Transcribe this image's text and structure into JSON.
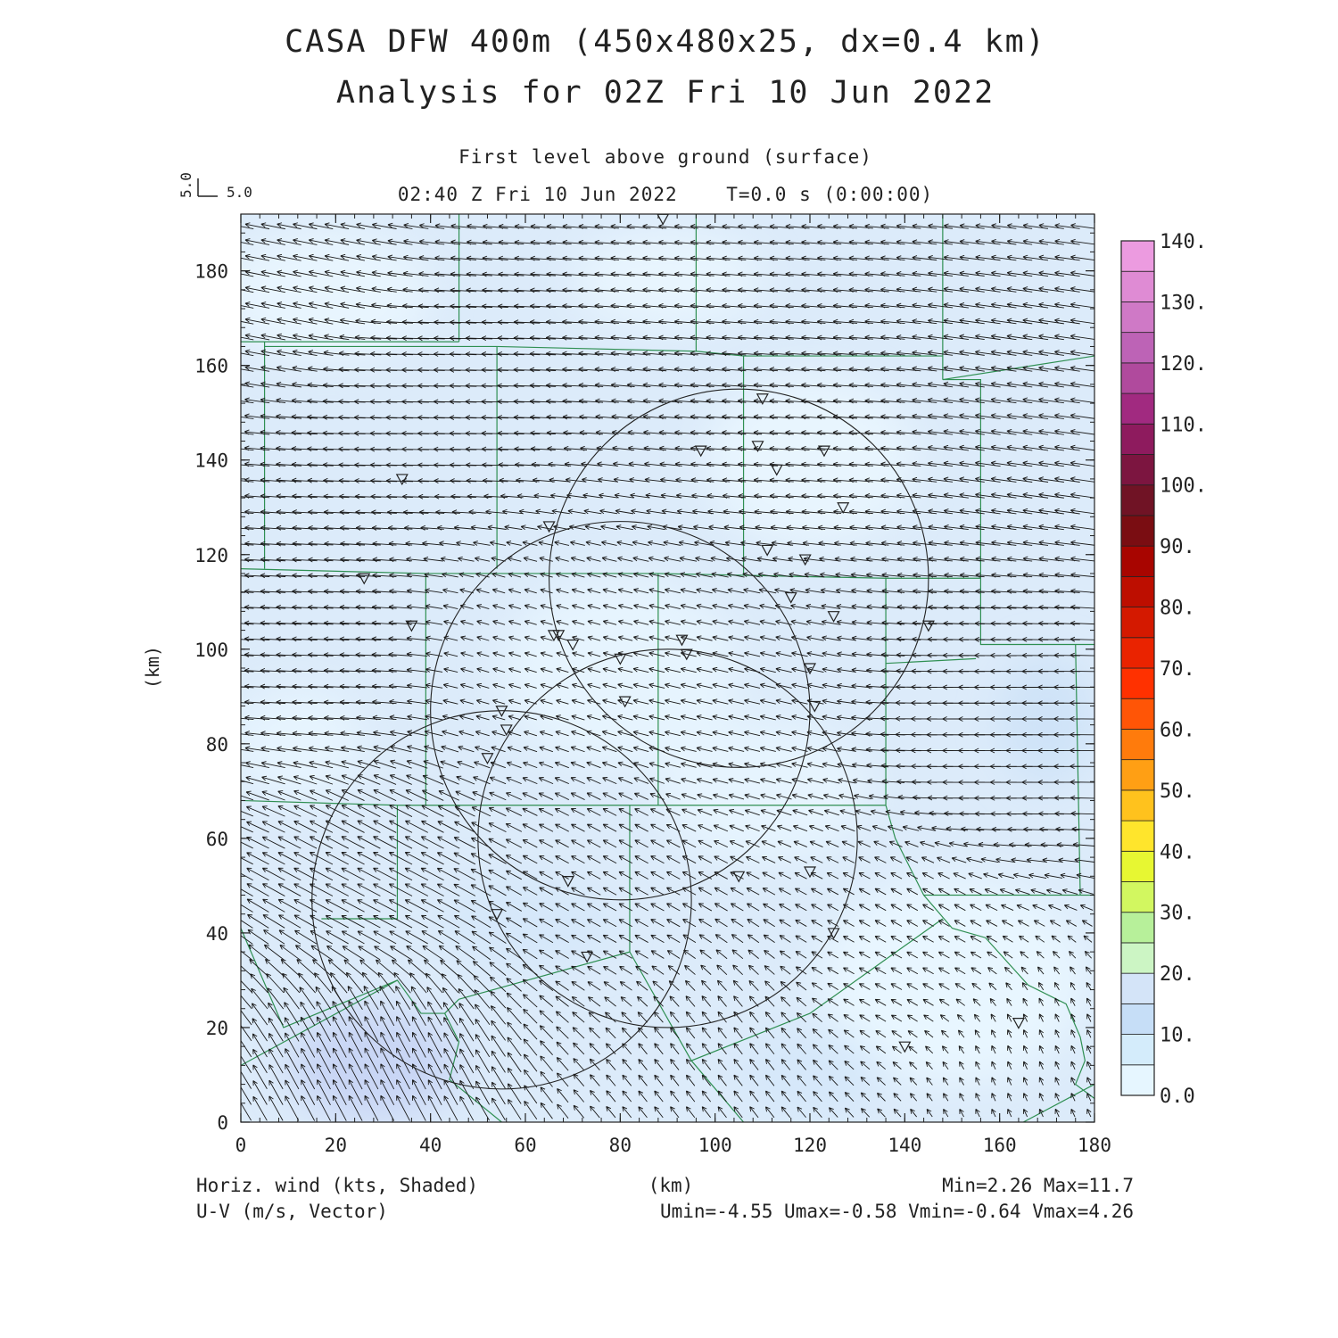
{
  "title": {
    "line1": "CASA DFW 400m (450x480x25, dx=0.4 km)",
    "line2": "Analysis for 02Z Fri 10 Jun 2022"
  },
  "subtitle": {
    "level": "First level above ground (surface)",
    "time": "02:40 Z Fri 10 Jun 2022    T=0.0 s (0:00:00)"
  },
  "reference_vector": {
    "u_label": "5.0",
    "v_label": "5.0"
  },
  "footer": {
    "left1": "Horiz. wind (kts, Shaded)",
    "left2": "U-V (m/s, Vector)",
    "center": "(km)",
    "right1": "Min=2.26 Max=11.7",
    "right2": "Umin=-4.55 Umax=-0.58 Vmin=-0.64 Vmax=4.26"
  },
  "chart_data": {
    "type": "heatmap",
    "xlabel": "(km)",
    "ylabel": "(km)",
    "xlim": [
      0,
      180
    ],
    "ylim": [
      0,
      192
    ],
    "xticks": [
      0,
      20,
      40,
      60,
      80,
      100,
      120,
      140,
      160,
      180
    ],
    "yticks": [
      0,
      20,
      40,
      60,
      80,
      100,
      120,
      140,
      160,
      180
    ],
    "xtick_labels": [
      "0",
      "20",
      "40",
      "60",
      "80",
      "100",
      "120",
      "140",
      "160",
      "180"
    ],
    "ytick_labels": [
      "0",
      "20",
      "40",
      "60",
      "80",
      "100",
      "120",
      "140",
      "160",
      "180"
    ],
    "field_shaded": "Horiz. wind (kts)",
    "field_vector": "U-V (m/s)",
    "stats": {
      "min": 2.26,
      "max": 11.7,
      "umin": -4.55,
      "umax": -0.58,
      "vmin": -0.64,
      "vmax": 4.26
    },
    "colorbar": {
      "levels": [
        0,
        5,
        10,
        15,
        20,
        25,
        30,
        35,
        40,
        45,
        50,
        55,
        60,
        65,
        70,
        75,
        80,
        85,
        90,
        95,
        100,
        105,
        110,
        115,
        120,
        125,
        130,
        135,
        140
      ],
      "labels": [
        "0.0",
        "10.",
        "20.",
        "30.",
        "40.",
        "50.",
        "60.",
        "70.",
        "80.",
        "90.",
        "100.",
        "110.",
        "120.",
        "130.",
        "140."
      ],
      "colors": [
        "#e6f6ff",
        "#d4ecfb",
        "#c6def7",
        "#d4e4f8",
        "#ccf5c4",
        "#b7f09a",
        "#d2f760",
        "#e7f732",
        "#ffe52c",
        "#ffc21d",
        "#ff9f14",
        "#ff7b0c",
        "#ff5506",
        "#ff3100",
        "#ea2300",
        "#d41900",
        "#bd0e00",
        "#a80500",
        "#7a0d12",
        "#701325",
        "#7c1540",
        "#8e1b5e",
        "#a12a80",
        "#b04a9d",
        "#bd63b6",
        "#cf79c6",
        "#df8bd4",
        "#ec9be0",
        "#f9abee"
      ]
    },
    "radar_rings": [
      {
        "center": [
          105,
          115
        ],
        "radius": 40
      },
      {
        "center": [
          80,
          87
        ],
        "radius": 40
      },
      {
        "center": [
          90,
          60
        ],
        "radius": 40
      },
      {
        "center": [
          55,
          47
        ],
        "radius": 40
      }
    ],
    "stations": [
      [
        89,
        191
      ],
      [
        110,
        153
      ],
      [
        97,
        142
      ],
      [
        109,
        143
      ],
      [
        123,
        142
      ],
      [
        113,
        138
      ],
      [
        127,
        130
      ],
      [
        34,
        136
      ],
      [
        65,
        126
      ],
      [
        111,
        121
      ],
      [
        119,
        119
      ],
      [
        26,
        115
      ],
      [
        116,
        111
      ],
      [
        125,
        107
      ],
      [
        36,
        105
      ],
      [
        145,
        105
      ],
      [
        66,
        103
      ],
      [
        67,
        103
      ],
      [
        70,
        101
      ],
      [
        93,
        102
      ],
      [
        94,
        99
      ],
      [
        80,
        98
      ],
      [
        120,
        96
      ],
      [
        81,
        89
      ],
      [
        121,
        88
      ],
      [
        55,
        87
      ],
      [
        56,
        83
      ],
      [
        52,
        77
      ],
      [
        69,
        51
      ],
      [
        105,
        52
      ],
      [
        120,
        53
      ],
      [
        54,
        44
      ],
      [
        125,
        40
      ],
      [
        73,
        35
      ],
      [
        164,
        21
      ],
      [
        140,
        16
      ]
    ],
    "wind_samples": [
      {
        "x": 10,
        "y": 180,
        "u": -4.0,
        "v": 0.8
      },
      {
        "x": 40,
        "y": 150,
        "u": -4.5,
        "v": 0.1
      },
      {
        "x": 120,
        "y": 150,
        "u": -4.0,
        "v": 0.3
      },
      {
        "x": 170,
        "y": 150,
        "u": -4.2,
        "v": 0.6
      },
      {
        "x": 20,
        "y": 100,
        "u": -4.2,
        "v": 0.2
      },
      {
        "x": 60,
        "y": 100,
        "u": -2.0,
        "v": 0.6
      },
      {
        "x": 100,
        "y": 90,
        "u": -2.6,
        "v": 0.6
      },
      {
        "x": 160,
        "y": 80,
        "u": -4.4,
        "v": 0.0
      },
      {
        "x": 30,
        "y": 50,
        "u": -3.8,
        "v": 2.0
      },
      {
        "x": 80,
        "y": 50,
        "u": -2.2,
        "v": 1.2
      },
      {
        "x": 140,
        "y": 40,
        "u": -1.8,
        "v": 1.0
      },
      {
        "x": 30,
        "y": 10,
        "u": -2.2,
        "v": 4.2
      },
      {
        "x": 100,
        "y": 10,
        "u": -1.4,
        "v": 1.8
      },
      {
        "x": 170,
        "y": 10,
        "u": -0.6,
        "v": 1.3
      }
    ]
  }
}
